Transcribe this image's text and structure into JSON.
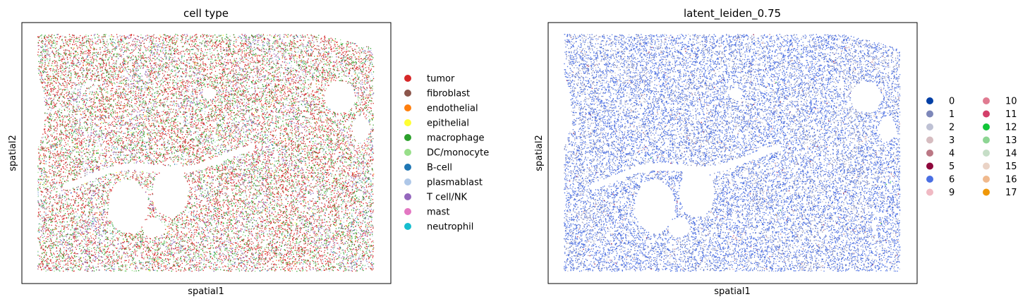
{
  "chart_data": [
    {
      "type": "scatter",
      "title": "cell type",
      "xlabel": "spatial1",
      "ylabel": "spatial2",
      "ticks": "none",
      "legend_position": "right",
      "legend_columns": 1,
      "categories": [
        {
          "name": "tumor",
          "color": "#d62728",
          "share": 0.46
        },
        {
          "name": "fibroblast",
          "color": "#8c564b",
          "share": 0.04
        },
        {
          "name": "endothelial",
          "color": "#ff7f0e",
          "share": 0.01
        },
        {
          "name": "epithelial",
          "color": "#ffff33",
          "share": 0.005
        },
        {
          "name": "macrophage",
          "color": "#2ca02c",
          "share": 0.14
        },
        {
          "name": "DC/monocyte",
          "color": "#98df8a",
          "share": 0.08
        },
        {
          "name": "B-cell",
          "color": "#1f77b4",
          "share": 0.01
        },
        {
          "name": "plasmablast",
          "color": "#aec7e8",
          "share": 0.08
        },
        {
          "name": "T cell/NK",
          "color": "#9467bd",
          "share": 0.15
        },
        {
          "name": "mast",
          "color": "#e377c2",
          "share": 0.005
        },
        {
          "name": "neutrophil",
          "color": "#17becf",
          "share": 0.02
        }
      ]
    },
    {
      "type": "scatter",
      "title": "latent_leiden_0.75",
      "xlabel": "spatial1",
      "ylabel": "spatial2",
      "ticks": "none",
      "legend_position": "right",
      "legend_columns": 2,
      "categories": [
        {
          "name": "0",
          "color": "#023fa5",
          "share": 0.01
        },
        {
          "name": "1",
          "color": "#7d87b9",
          "share": 0.28
        },
        {
          "name": "2",
          "color": "#bec1d4",
          "share": 0.1
        },
        {
          "name": "3",
          "color": "#d6bcc0",
          "share": 0.01
        },
        {
          "name": "4",
          "color": "#bb7784",
          "share": 0.01
        },
        {
          "name": "5",
          "color": "#8e063b",
          "share": 0.003
        },
        {
          "name": "6",
          "color": "#4a6fe3",
          "share": 0.54
        },
        {
          "name": "9",
          "color": "#f0b9c3",
          "share": 0.02
        },
        {
          "name": "10",
          "color": "#e07b91",
          "share": 0.005
        },
        {
          "name": "11",
          "color": "#d33f6a",
          "share": 0.003
        },
        {
          "name": "12",
          "color": "#11c638",
          "share": 0.002
        },
        {
          "name": "13",
          "color": "#8dd593",
          "share": 0.003
        },
        {
          "name": "14",
          "color": "#c6dec7",
          "share": 0.003
        },
        {
          "name": "15",
          "color": "#ead3c6",
          "share": 0.004
        },
        {
          "name": "16",
          "color": "#f0b98d",
          "share": 0.004
        },
        {
          "name": "17",
          "color": "#ef9708",
          "share": 0.005
        }
      ]
    }
  ]
}
